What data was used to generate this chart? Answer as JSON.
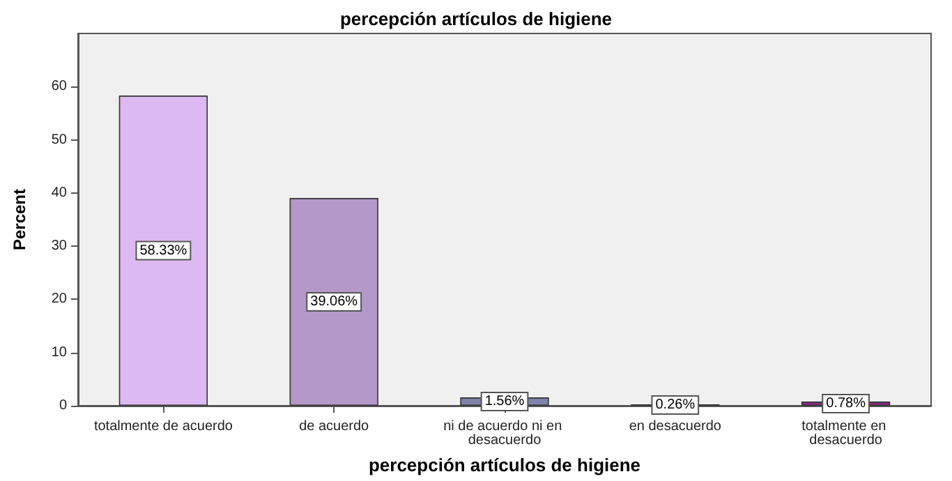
{
  "chart_data": {
    "type": "bar",
    "title": "percepción artículos de higiene",
    "xlabel": "percepción artículos de higiene",
    "ylabel": "Percent",
    "categories": [
      "totalmente de acuerdo",
      "de acuerdo",
      "ni de acuerdo ni en desacuerdo",
      "en desacuerdo",
      "totalmente en desacuerdo"
    ],
    "values": [
      58.33,
      39.06,
      1.56,
      0.26,
      0.78
    ],
    "colors": [
      "#dcb9f0",
      "#b398c8",
      "#7f82aa",
      "#6a4a6a",
      "#8e2a86"
    ],
    "value_labels": [
      "58.33%",
      "39.06%",
      "1.56%",
      "0.26%",
      "0.78%"
    ],
    "ylim": [
      0,
      70
    ],
    "yticks": [
      0,
      10,
      20,
      30,
      40,
      50,
      60
    ],
    "grid": false
  }
}
